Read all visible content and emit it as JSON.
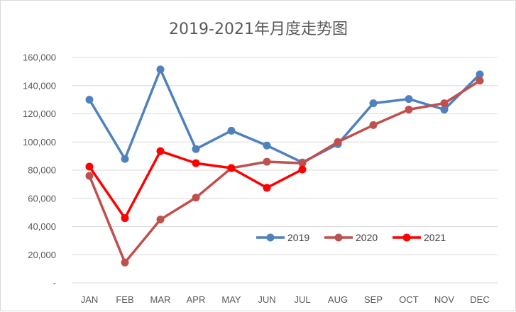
{
  "chart_data": {
    "type": "line",
    "title": "2019-2021年月度走势图",
    "categories": [
      "JAN",
      "FEB",
      "MAR",
      "APR",
      "MAY",
      "JUN",
      "JUL",
      "AUG",
      "SEP",
      "OCT",
      "NOV",
      "DEC"
    ],
    "y_ticks": [
      "-",
      "20,000",
      "40,000",
      "60,000",
      "80,000",
      "100,000",
      "120,000",
      "140,000",
      "160,000"
    ],
    "ylim": [
      0,
      160000
    ],
    "grid": true,
    "legend_position": "bottom-right inside plot",
    "series": [
      {
        "name": "2019",
        "color": "#4e81bd",
        "values": [
          130000,
          88000,
          151500,
          95000,
          108000,
          97500,
          85500,
          98500,
          127500,
          130500,
          123000,
          148000
        ]
      },
      {
        "name": "2020",
        "color": "#c0504d",
        "values": [
          76000,
          14500,
          45000,
          60500,
          81500,
          86000,
          85000,
          100000,
          112000,
          123000,
          127500,
          143500
        ]
      },
      {
        "name": "2021",
        "color": "#ff0000",
        "values": [
          82500,
          46000,
          93500,
          85000,
          81500,
          67500,
          80500,
          null,
          null,
          null,
          null,
          null
        ]
      }
    ]
  }
}
